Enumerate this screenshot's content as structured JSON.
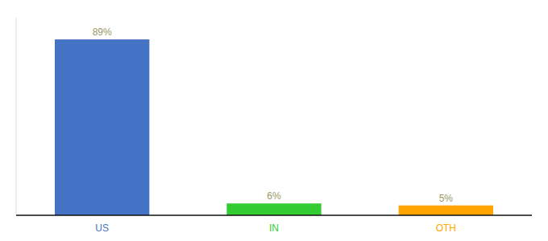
{
  "chart_data": {
    "type": "bar",
    "categories": [
      "US",
      "IN",
      "OTH"
    ],
    "values": [
      89,
      6,
      5
    ],
    "value_labels": [
      "89%",
      "6%",
      "5%"
    ],
    "colors": [
      "#4472C4",
      "#33CC33",
      "#FFA500"
    ],
    "ylim": [
      0,
      100
    ],
    "data_labels": true,
    "tick_labels": "x",
    "grid": false
  }
}
